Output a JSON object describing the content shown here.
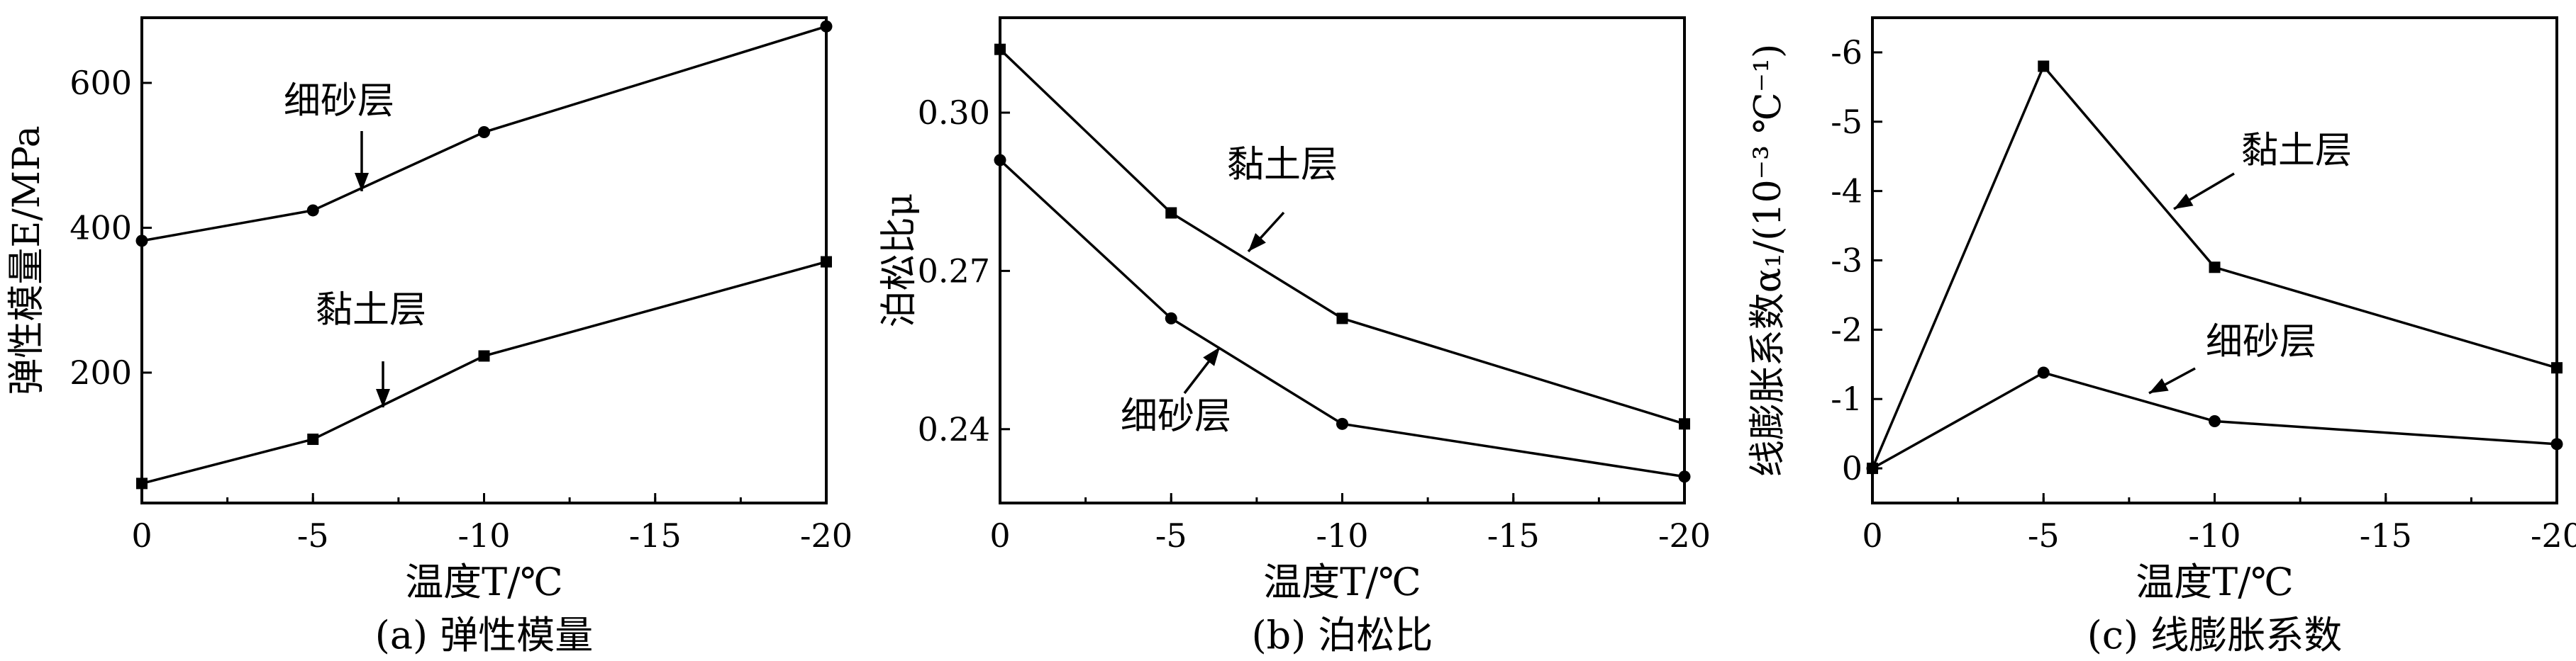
{
  "chart_data": [
    {
      "type": "line",
      "panel_caption": "(a) 弹性模量",
      "xlabel": "温度T/℃",
      "ylabel": "弹性模量E/MPa",
      "x_ticks": [
        "0",
        "-5",
        "-10",
        "-15",
        "-20"
      ],
      "y_ticks": [
        "200",
        "400",
        "600"
      ],
      "xlim": [
        0,
        -20
      ],
      "ylim": [
        20,
        690
      ],
      "series": [
        {
          "name": "细砂层",
          "marker": "circle",
          "x": [
            0,
            -5,
            -10,
            -20
          ],
          "y": [
            382,
            424,
            532,
            678
          ]
        },
        {
          "name": "黏土层",
          "marker": "square",
          "x": [
            0,
            -5,
            -10,
            -20
          ],
          "y": [
            47,
            108,
            223,
            353
          ]
        }
      ],
      "annotations": [
        {
          "label": "细砂层",
          "series": 0
        },
        {
          "label": "黏土层",
          "series": 1
        }
      ]
    },
    {
      "type": "line",
      "panel_caption": "(b) 泊松比",
      "xlabel": "温度T/℃",
      "ylabel": "泊松比μ",
      "x_ticks": [
        "0",
        "-5",
        "-10",
        "-15",
        "-20"
      ],
      "y_ticks": [
        "0.24",
        "0.27",
        "0.30"
      ],
      "xlim": [
        0,
        -20
      ],
      "ylim": [
        0.226,
        0.318
      ],
      "series": [
        {
          "name": "黏土层",
          "marker": "square",
          "x": [
            0,
            -5,
            -10,
            -20
          ],
          "y": [
            0.312,
            0.281,
            0.261,
            0.241
          ]
        },
        {
          "name": "细砂层",
          "marker": "circle",
          "x": [
            0,
            -5,
            -10,
            -20
          ],
          "y": [
            0.291,
            0.261,
            0.241,
            0.231
          ]
        }
      ],
      "annotations": [
        {
          "label": "黏土层",
          "series": 0
        },
        {
          "label": "细砂层",
          "series": 1
        }
      ]
    },
    {
      "type": "line",
      "panel_caption": "(c) 线膨胀系数",
      "xlabel": "温度T/℃",
      "ylabel": "线膨胀系数α₁/(10⁻³ ℃⁻¹)",
      "x_ticks": [
        "0",
        "-5",
        "-10",
        "-15",
        "-20"
      ],
      "y_ticks": [
        "0",
        "-1",
        "-2",
        "-3",
        "-4",
        "-5",
        "-6"
      ],
      "xlim": [
        0,
        -20
      ],
      "ylim": [
        0.5,
        -6.5
      ],
      "series": [
        {
          "name": "黏土层",
          "marker": "square",
          "x": [
            0,
            -5,
            -10,
            -20
          ],
          "y": [
            0,
            -5.8,
            -2.9,
            -1.45
          ]
        },
        {
          "name": "细砂层",
          "marker": "circle",
          "x": [
            0,
            -5,
            -10,
            -20
          ],
          "y": [
            0,
            -1.38,
            -0.68,
            -0.35
          ]
        }
      ],
      "annotations": [
        {
          "label": "黏土层",
          "series": 0
        },
        {
          "label": "细砂层",
          "series": 1
        }
      ]
    }
  ]
}
